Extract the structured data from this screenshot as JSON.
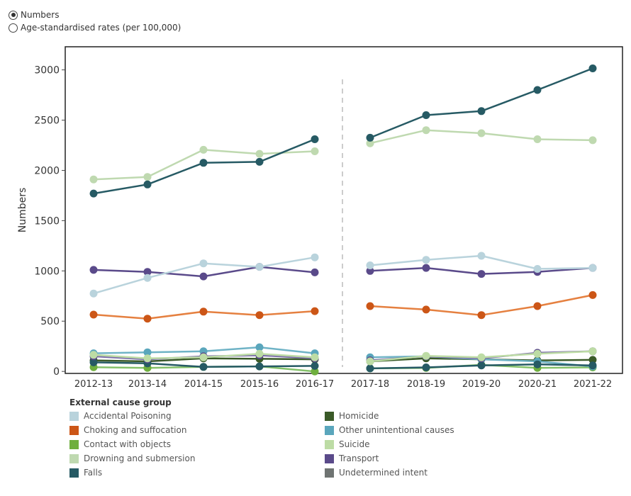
{
  "controls": {
    "options": [
      {
        "label": "Numbers",
        "checked": true
      },
      {
        "label": "Age-standardised rates (per 100,000)",
        "checked": false
      }
    ]
  },
  "legend": {
    "title": "External cause group",
    "items": [
      {
        "name": "Accidental Poisoning",
        "color": "#b9d3dc"
      },
      {
        "name": "Homicide",
        "color": "#3a5a28"
      },
      {
        "name": "Choking and suffocation",
        "color": "#cc5617"
      },
      {
        "name": "Other unintentional causes",
        "color": "#5aa6bc"
      },
      {
        "name": "Contact with objects",
        "color": "#6faf3e"
      },
      {
        "name": "Suicide",
        "color": "#bddca5"
      },
      {
        "name": "Drowning and submersion",
        "color": "#bfd9b0"
      },
      {
        "name": "Transport",
        "color": "#5a4a8a"
      },
      {
        "name": "Falls",
        "color": "#265a64"
      },
      {
        "name": "Undetermined intent",
        "color": "#6f7472"
      }
    ]
  },
  "chart_data": {
    "type": "line",
    "title": "",
    "xlabel": "",
    "ylabel": "Numbers",
    "ylim": [
      -20,
      3230
    ],
    "yticks": [
      0,
      500,
      1000,
      1500,
      2000,
      2500,
      3000
    ],
    "categories": [
      "2012-13",
      "2013-14",
      "2014-15",
      "2015-16",
      "2016-17",
      "2017-18",
      "2018-19",
      "2019-20",
      "2020-21",
      "2021-22"
    ],
    "break_after_index": 4,
    "grid": false,
    "legend_position": "bottom",
    "series": [
      {
        "name": "Contact with objects",
        "color": "#6faf3e",
        "line": "#84c16a",
        "values": [
          42,
          35,
          45,
          50,
          0,
          30,
          35,
          65,
          35,
          40
        ]
      },
      {
        "name": "Homicide",
        "color": "#3a5a28",
        "line": "#3a5a28",
        "values": [
          110,
          100,
          130,
          125,
          120,
          100,
          130,
          120,
          110,
          115
        ]
      },
      {
        "name": "Other unintentional causes",
        "color": "#5aa6bc",
        "line": "#6fb3c6",
        "values": [
          180,
          190,
          200,
          240,
          180,
          140,
          150,
          120,
          100,
          50
        ]
      },
      {
        "name": "Falls (low values)",
        "color": "#265a64",
        "line": "#265a64",
        "values": [
          90,
          80,
          45,
          50,
          55,
          30,
          40,
          60,
          70,
          60
        ]
      },
      {
        "name": "Transport (low values)",
        "color": "#5a4a8a",
        "line": "#7e6fab",
        "values": [
          150,
          120,
          150,
          160,
          130,
          110,
          150,
          130,
          185,
          200
        ]
      },
      {
        "name": "Suicide (low values)",
        "color": "#bddca5",
        "line": "#bddca5",
        "values": [
          165,
          130,
          140,
          175,
          140,
          100,
          155,
          140,
          175,
          200
        ]
      },
      {
        "name": "Choking and suffocation",
        "color": "#cc5617",
        "line": "#e58040",
        "values": [
          565,
          525,
          595,
          560,
          600,
          650,
          615,
          560,
          650,
          760
        ]
      },
      {
        "name": "Transport",
        "color": "#5a4a8a",
        "line": "#5a4a8a",
        "values": [
          1010,
          990,
          945,
          1040,
          985,
          1000,
          1030,
          970,
          990,
          1030
        ]
      },
      {
        "name": "Accidental Poisoning",
        "color": "#b9d3dc",
        "line": "#b9d3dc",
        "values": [
          775,
          930,
          1075,
          1040,
          1135,
          1055,
          1110,
          1150,
          1020,
          1030
        ]
      },
      {
        "name": "Drowning and submersion",
        "color": "#bfd9b0",
        "line": "#bfd9b0",
        "values": [
          1910,
          1935,
          2205,
          2165,
          2190,
          2270,
          2400,
          2370,
          2310,
          2300
        ]
      },
      {
        "name": "Falls",
        "color": "#265a64",
        "line": "#265a64",
        "values": [
          1770,
          1860,
          2075,
          2085,
          2310,
          2325,
          2550,
          2590,
          2800,
          3015
        ]
      }
    ]
  }
}
